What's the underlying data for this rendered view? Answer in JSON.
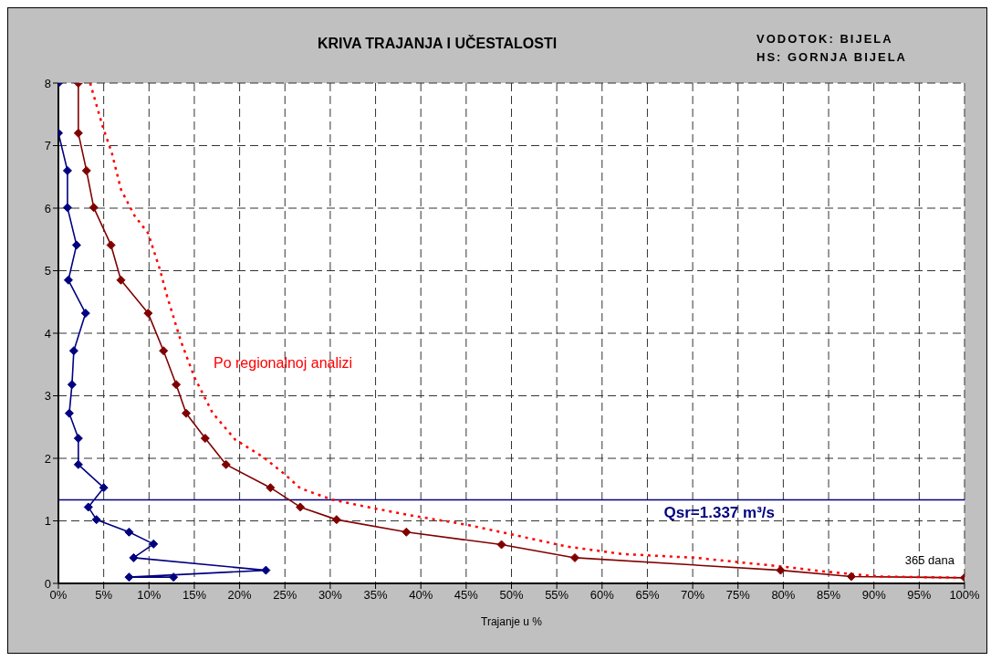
{
  "chart_data": {
    "type": "line",
    "title": "KRIVA TRAJANJA I UČESTALOSTI",
    "annotations": [
      "VODOTOK: BIJELA",
      "HS: GORNJA BIJELA",
      "Po regionalnoj analizi",
      {
        "text": "365 dana",
        "x": 100,
        "y": 0.09
      }
    ],
    "xlabel": "Trajanje u %",
    "xlim": [
      0,
      100
    ],
    "xticks": [
      {
        "value": 0,
        "label": "0%"
      },
      {
        "value": 5,
        "label": "5%"
      },
      {
        "value": 10,
        "label": "10%"
      },
      {
        "value": 15,
        "label": "15%"
      },
      {
        "value": 20,
        "label": "20%"
      },
      {
        "value": 25,
        "label": "25%"
      },
      {
        "value": 30,
        "label": "30%"
      },
      {
        "value": 35,
        "label": "35%"
      },
      {
        "value": 40,
        "label": "40%"
      },
      {
        "value": 45,
        "label": "45%"
      },
      {
        "value": 50,
        "label": "50%"
      },
      {
        "value": 55,
        "label": "55%"
      },
      {
        "value": 60,
        "label": "60%"
      },
      {
        "value": 65,
        "label": "65%"
      },
      {
        "value": 70,
        "label": "70%"
      },
      {
        "value": 75,
        "label": "75%"
      },
      {
        "value": 80,
        "label": "80%"
      },
      {
        "value": 85,
        "label": "85%"
      },
      {
        "value": 90,
        "label": "90%"
      },
      {
        "value": 95,
        "label": "95%"
      },
      {
        "value": 100,
        "label": "100%"
      }
    ],
    "ylim": [
      0,
      8
    ],
    "yticks": [
      0,
      1,
      2,
      3,
      4,
      5,
      6,
      7,
      8
    ],
    "grid": true,
    "series": [
      {
        "color": "#000080",
        "marker": "diamond",
        "line_style": "solid",
        "x": [
          0,
          0,
          1.0,
          1.0,
          2.0,
          1.1,
          3.0,
          1.7,
          1.5,
          1.2,
          2.2,
          2.2,
          5.0,
          3.3,
          4.2,
          7.8,
          10.5,
          8.3,
          22.9,
          7.8,
          12.7
        ],
        "values": [
          8,
          7.2,
          6.6,
          6.01,
          5.41,
          4.85,
          4.32,
          3.72,
          3.18,
          2.72,
          2.32,
          1.9,
          1.53,
          1.22,
          1.02,
          0.82,
          0.63,
          0.41,
          0.21,
          0.1,
          0.1
        ]
      },
      {
        "color": "#800000",
        "marker": "diamond",
        "line_style": "solid",
        "x": [
          2.2,
          2.2,
          3.1,
          3.9,
          5.8,
          6.9,
          9.9,
          11.6,
          13.0,
          14.1,
          16.2,
          18.5,
          23.4,
          26.7,
          30.7,
          38.4,
          48.9,
          57.0,
          79.7,
          87.5,
          100
        ],
        "values": [
          8,
          7.2,
          6.6,
          6.01,
          5.41,
          4.85,
          4.32,
          3.72,
          3.18,
          2.72,
          2.32,
          1.9,
          1.53,
          1.22,
          1.02,
          0.82,
          0.62,
          0.41,
          0.21,
          0.11,
          0.09
        ]
      },
      {
        "color": "#ff0000",
        "marker": "none",
        "line_style": "dotted",
        "x": [
          3.5,
          4.9,
          5.9,
          6.9,
          8.4,
          9.9,
          11.2,
          12,
          13.5,
          15,
          17,
          19.5,
          22.6,
          25.1,
          26.7,
          30.2,
          33.8,
          38.8,
          45,
          49.5,
          56.1,
          62.2,
          70.3,
          80.5,
          84.5,
          90.6,
          100
        ],
        "values": [
          8,
          7.3,
          6.88,
          6.3,
          5.88,
          5.6,
          5.02,
          4.59,
          3.88,
          3.3,
          2.73,
          2.3,
          2.02,
          1.73,
          1.52,
          1.34,
          1.23,
          1.09,
          0.94,
          0.8,
          0.59,
          0.47,
          0.41,
          0.26,
          0.19,
          0.11,
          0.09
        ]
      }
    ],
    "ref_lines": [
      {
        "axis": "y",
        "value": 1.337,
        "label": "Qsr=1.337 m³/s",
        "color": "#000080"
      }
    ]
  }
}
